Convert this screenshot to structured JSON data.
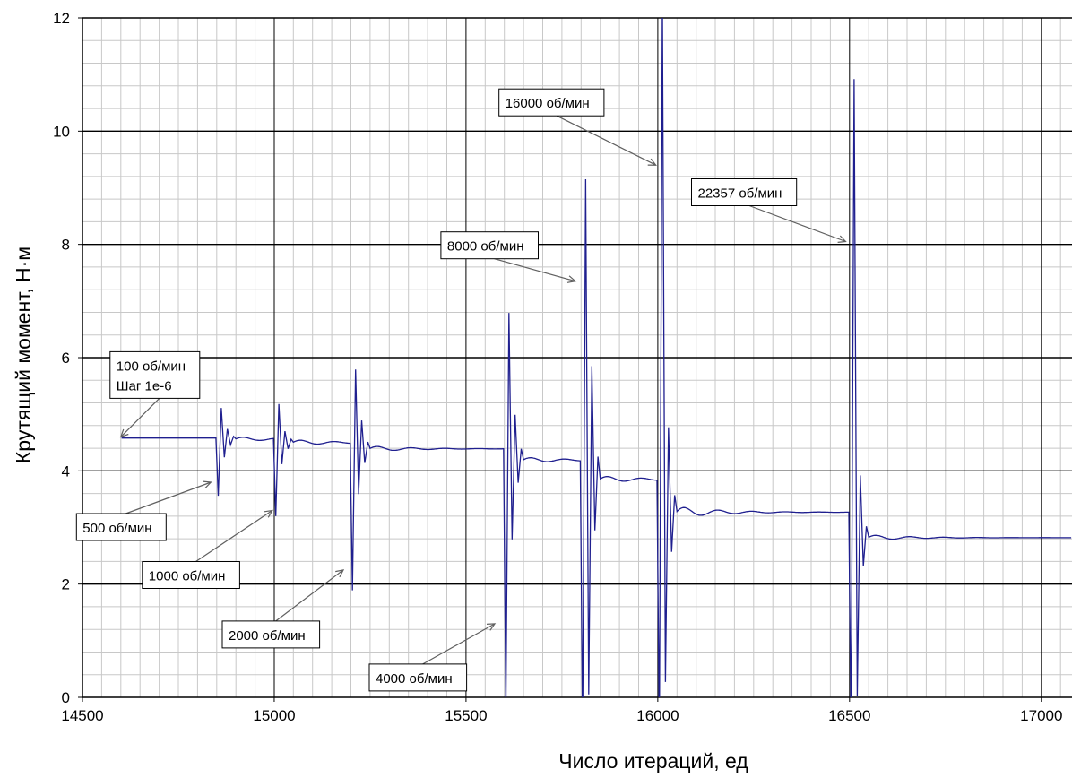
{
  "chart_data": {
    "type": "line",
    "title": "",
    "xlabel": "Число итераций, ед",
    "ylabel": "Крутящий момент, Н·м",
    "xlim": [
      14500,
      17080
    ],
    "ylim": [
      0,
      12
    ],
    "xticks": [
      14500,
      15000,
      15500,
      16000,
      16500,
      17000
    ],
    "yticks": [
      0,
      2,
      4,
      6,
      8,
      10,
      12
    ],
    "grid": true,
    "line_color": "#1f1f8f",
    "segments": [
      {
        "start": 14600,
        "end": 14850,
        "level": 4.58,
        "spike": [
          0,
          0,
          0,
          0,
          0,
          0
        ],
        "decay": 0
      },
      {
        "start": 14850,
        "end": 15000,
        "level": 4.56,
        "spike": [
          -1.0,
          0.55,
          -0.32,
          0.18,
          -0.1,
          0.05
        ],
        "decay": 0.04
      },
      {
        "start": 15000,
        "end": 15200,
        "level": 4.5,
        "spike": [
          -1.3,
          0.68,
          -0.38,
          0.2,
          -0.11,
          0.06
        ],
        "decay": 0.05
      },
      {
        "start": 15200,
        "end": 15600,
        "level": 4.39,
        "spike": [
          -2.5,
          1.4,
          -0.8,
          0.5,
          -0.25,
          0.12
        ],
        "decay": 0.05
      },
      {
        "start": 15600,
        "end": 15800,
        "level": 4.19,
        "spike": [
          -4.4,
          2.6,
          -1.4,
          0.8,
          -0.4,
          0.2
        ],
        "decay": 0.05
      },
      {
        "start": 15800,
        "end": 16000,
        "level": 3.85,
        "spike": [
          -4.5,
          5.3,
          -3.8,
          2.0,
          -0.9,
          0.4
        ],
        "decay": 0.06
      },
      {
        "start": 16000,
        "end": 16500,
        "level": 3.27,
        "spike": [
          -4.0,
          9.0,
          -3.0,
          1.5,
          -0.7,
          0.3
        ],
        "decay": 0.1
      },
      {
        "start": 16500,
        "end": 17080,
        "level": 2.82,
        "spike": [
          -3.5,
          8.1,
          -2.8,
          1.1,
          -0.5,
          0.2
        ],
        "decay": 0.05
      }
    ],
    "annotations": [
      {
        "lines": [
          "100 об/мин",
          "Шаг 1е-6"
        ],
        "x": 14600,
        "y": 4.6
      },
      {
        "lines": [
          "500 об/мин"
        ],
        "x": 14835,
        "y": 3.8
      },
      {
        "lines": [
          "1000 об/мин"
        ],
        "x": 14995,
        "y": 3.3
      },
      {
        "lines": [
          "2000 об/мин"
        ],
        "x": 15180,
        "y": 2.25
      },
      {
        "lines": [
          "4000 об/мин"
        ],
        "x": 15575,
        "y": 1.3
      },
      {
        "lines": [
          "8000 об/мин"
        ],
        "x": 15785,
        "y": 7.35
      },
      {
        "lines": [
          "16000 об/мин"
        ],
        "x": 15995,
        "y": 9.4
      },
      {
        "lines": [
          "22357 об/мин"
        ],
        "x": 16490,
        "y": 8.05
      }
    ]
  }
}
